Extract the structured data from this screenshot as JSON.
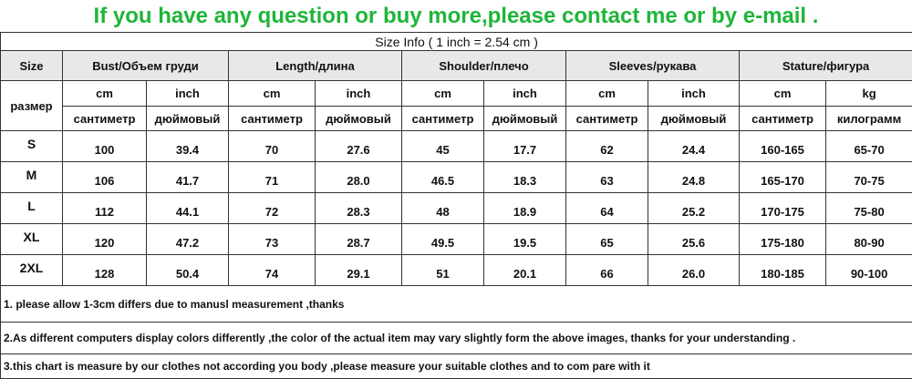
{
  "header": {
    "title": "If you have any question or buy more,please contact me or by e-mail .",
    "subtitle": "Size Info ( 1 inch = 2.54 cm )"
  },
  "table": {
    "size_label": "Size",
    "size_label_ru": "размер",
    "groups": [
      "Bust/Объем груди",
      "Length/длина",
      "Shoulder/плечо",
      "Sleeves/рукава",
      "Stature/фигура"
    ],
    "units": [
      "cm",
      "inch",
      "cm",
      "inch",
      "cm",
      "inch",
      "cm",
      "inch",
      "cm",
      "kg"
    ],
    "units_ru": [
      "сантиметр",
      "дюймовый",
      "сантиметр",
      "дюймовый",
      "сантиметр",
      "дюймовый",
      "сантиметр",
      "дюймовый",
      "сантиметр",
      "килограмм"
    ],
    "rows": [
      [
        "S",
        "100",
        "39.4",
        "70",
        "27.6",
        "45",
        "17.7",
        "62",
        "24.4",
        "160-165",
        "65-70"
      ],
      [
        "M",
        "106",
        "41.7",
        "71",
        "28.0",
        "46.5",
        "18.3",
        "63",
        "24.8",
        "165-170",
        "70-75"
      ],
      [
        "L",
        "112",
        "44.1",
        "72",
        "28.3",
        "48",
        "18.9",
        "64",
        "25.2",
        "170-175",
        "75-80"
      ],
      [
        "XL",
        "120",
        "47.2",
        "73",
        "28.7",
        "49.5",
        "19.5",
        "65",
        "25.6",
        "175-180",
        "80-90"
      ],
      [
        "2XL",
        "128",
        "50.4",
        "74",
        "29.1",
        "51",
        "20.1",
        "66",
        "26.0",
        "180-185",
        "90-100"
      ]
    ]
  },
  "notes": [
    "1. please allow 1-3cm differs due to manusl measurement ,thanks",
    "2.As different computers display colors differently ,the color of the actual item may vary slightly form the above images, thanks for your understanding .",
    "3.this chart is measure by our clothes not according you body ,please measure your suitable clothes and to com pare with it"
  ]
}
